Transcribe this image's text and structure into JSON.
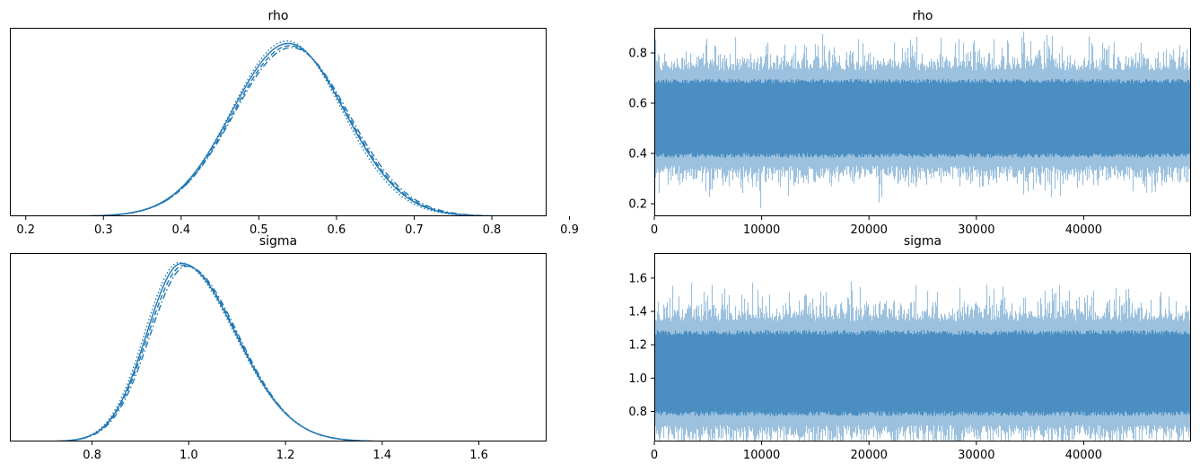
{
  "chart_data": [
    {
      "type": "line",
      "panel": "density",
      "title": "rho",
      "xlim": [
        0.1795,
        0.8705
      ],
      "ylim": [
        0,
        1
      ],
      "xticks": [
        0.2,
        0.3,
        0.4,
        0.5,
        0.6,
        0.7,
        0.8,
        0.9
      ],
      "yticks": [],
      "series": [
        {
          "style": "solid",
          "mean": 0.538,
          "sd": 0.0726,
          "peak": 0.917,
          "x_min": 0.18,
          "x_max": 0.868
        },
        {
          "style": "dashed",
          "mean": 0.54,
          "sd": 0.073,
          "peak": 0.905,
          "x_min": 0.18,
          "x_max": 0.866
        },
        {
          "style": "dotted",
          "mean": 0.536,
          "sd": 0.071,
          "peak": 0.93,
          "x_min": 0.18,
          "x_max": 0.862
        },
        {
          "style": "dashdot",
          "mean": 0.542,
          "sd": 0.074,
          "peak": 0.895,
          "x_min": 0.18,
          "x_max": 0.865
        }
      ]
    },
    {
      "type": "line",
      "panel": "trace",
      "title": "rho",
      "xlim": [
        0,
        49999
      ],
      "ylim": [
        0.15,
        0.9
      ],
      "xticks": [
        0,
        10000,
        20000,
        30000,
        40000
      ],
      "yticks": [
        0.2,
        0.4,
        0.6,
        0.8
      ],
      "series": [
        {
          "style": "solid",
          "mean": 0.54,
          "sd": 0.073,
          "n_draws": 50000
        },
        {
          "style": "dashed",
          "mean": 0.54,
          "sd": 0.073,
          "n_draws": 50000
        },
        {
          "style": "dotted",
          "mean": 0.54,
          "sd": 0.073,
          "n_draws": 50000
        },
        {
          "style": "dashdot",
          "mean": 0.54,
          "sd": 0.073,
          "n_draws": 50000
        }
      ]
    },
    {
      "type": "line",
      "panel": "density",
      "title": "sigma",
      "xlim": [
        0.63,
        1.74
      ],
      "ylim": [
        0,
        1
      ],
      "xticks": [
        0.8,
        1.0,
        1.2,
        1.4,
        1.6
      ],
      "yticks": [],
      "series": [
        {
          "style": "solid",
          "mode": 0.985,
          "sd_left": 0.072,
          "sd_right": 0.112,
          "peak": 0.945,
          "x_min": 0.67,
          "x_max": 1.61
        },
        {
          "style": "dashed",
          "mode": 0.99,
          "sd_left": 0.074,
          "sd_right": 0.11,
          "peak": 0.935,
          "x_min": 0.67,
          "x_max": 1.7
        },
        {
          "style": "dotted",
          "mode": 0.98,
          "sd_left": 0.071,
          "sd_right": 0.114,
          "peak": 0.95,
          "x_min": 0.67,
          "x_max": 1.62
        },
        {
          "style": "dashdot",
          "mode": 0.995,
          "sd_left": 0.075,
          "sd_right": 0.108,
          "peak": 0.93,
          "x_min": 0.67,
          "x_max": 1.6
        }
      ]
    },
    {
      "type": "line",
      "panel": "trace",
      "title": "sigma",
      "xlim": [
        0,
        49999
      ],
      "ylim": [
        0.62,
        1.75
      ],
      "xticks": [
        0,
        10000,
        20000,
        30000,
        40000
      ],
      "yticks": [
        0.8,
        1.0,
        1.2,
        1.4,
        1.6
      ],
      "series": [
        {
          "style": "solid",
          "mean": 1.03,
          "sd": 0.12,
          "n_draws": 50000
        },
        {
          "style": "dashed",
          "mean": 1.03,
          "sd": 0.12,
          "n_draws": 50000
        },
        {
          "style": "dotted",
          "mean": 1.03,
          "sd": 0.12,
          "n_draws": 50000
        },
        {
          "style": "dashdot",
          "mean": 1.03,
          "sd": 0.12,
          "n_draws": 50000
        }
      ]
    }
  ],
  "colors": {
    "density_line": "#1f77b4",
    "trace_fill": "#4a8ec2",
    "trace_line": "#1f77b4",
    "axis": "#000000"
  }
}
